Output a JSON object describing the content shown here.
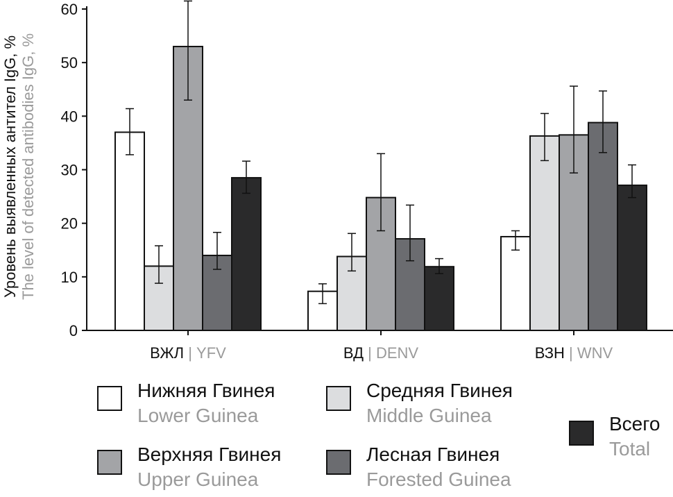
{
  "chart_data": {
    "type": "bar",
    "ylabel_ru": "Уровень выявленных антител IgG, %",
    "ylabel_en": "The level of detected antibodies IgG, %",
    "ylim": [
      0,
      60
    ],
    "yticks": [
      "0",
      "10",
      "20",
      "30",
      "40",
      "50",
      "60"
    ],
    "categories": [
      {
        "ru": "ВЖЛ",
        "en": "YFV"
      },
      {
        "ru": "ВД",
        "en": "DENV"
      },
      {
        "ru": "ВЗН",
        "en": "WNV"
      }
    ],
    "series": [
      {
        "name_ru": "Нижняя Гвинея",
        "name_en": "Lower Guinea",
        "color": "#ffffff",
        "values": [
          37,
          7.3,
          17.5
        ],
        "err_low": [
          32.8,
          5.0,
          15.0
        ],
        "err_high": [
          41.4,
          8.7,
          18.6
        ]
      },
      {
        "name_ru": "Средняя Гвинея",
        "name_en": "Middle Guinea",
        "color": "#dcdddf",
        "values": [
          12,
          13.8,
          36.3
        ],
        "err_low": [
          8.8,
          11.1,
          31.7
        ],
        "err_high": [
          15.8,
          18.1,
          40.5
        ]
      },
      {
        "name_ru": "Верхняя Гвинея",
        "name_en": "Upper Guinea",
        "color": "#a3a4a7",
        "values": [
          53,
          24.8,
          36.5
        ],
        "err_low": [
          43.0,
          18.6,
          29.4
        ],
        "err_high": [
          61.5,
          33.0,
          45.6
        ]
      },
      {
        "name_ru": "Лесная Гвинея",
        "name_en": "Forested Guinea",
        "color": "#6b6c70",
        "values": [
          14,
          17.1,
          38.8
        ],
        "err_low": [
          11.4,
          13.0,
          33.2
        ],
        "err_high": [
          18.3,
          23.4,
          44.7
        ]
      },
      {
        "name_ru": "Всего",
        "name_en": "Total",
        "color": "#2a2a2b",
        "values": [
          28.5,
          11.9,
          27.1
        ],
        "err_low": [
          25.6,
          10.6,
          24.8
        ],
        "err_high": [
          31.6,
          13.4,
          30.9
        ]
      }
    ],
    "legend_position": "bottom"
  }
}
